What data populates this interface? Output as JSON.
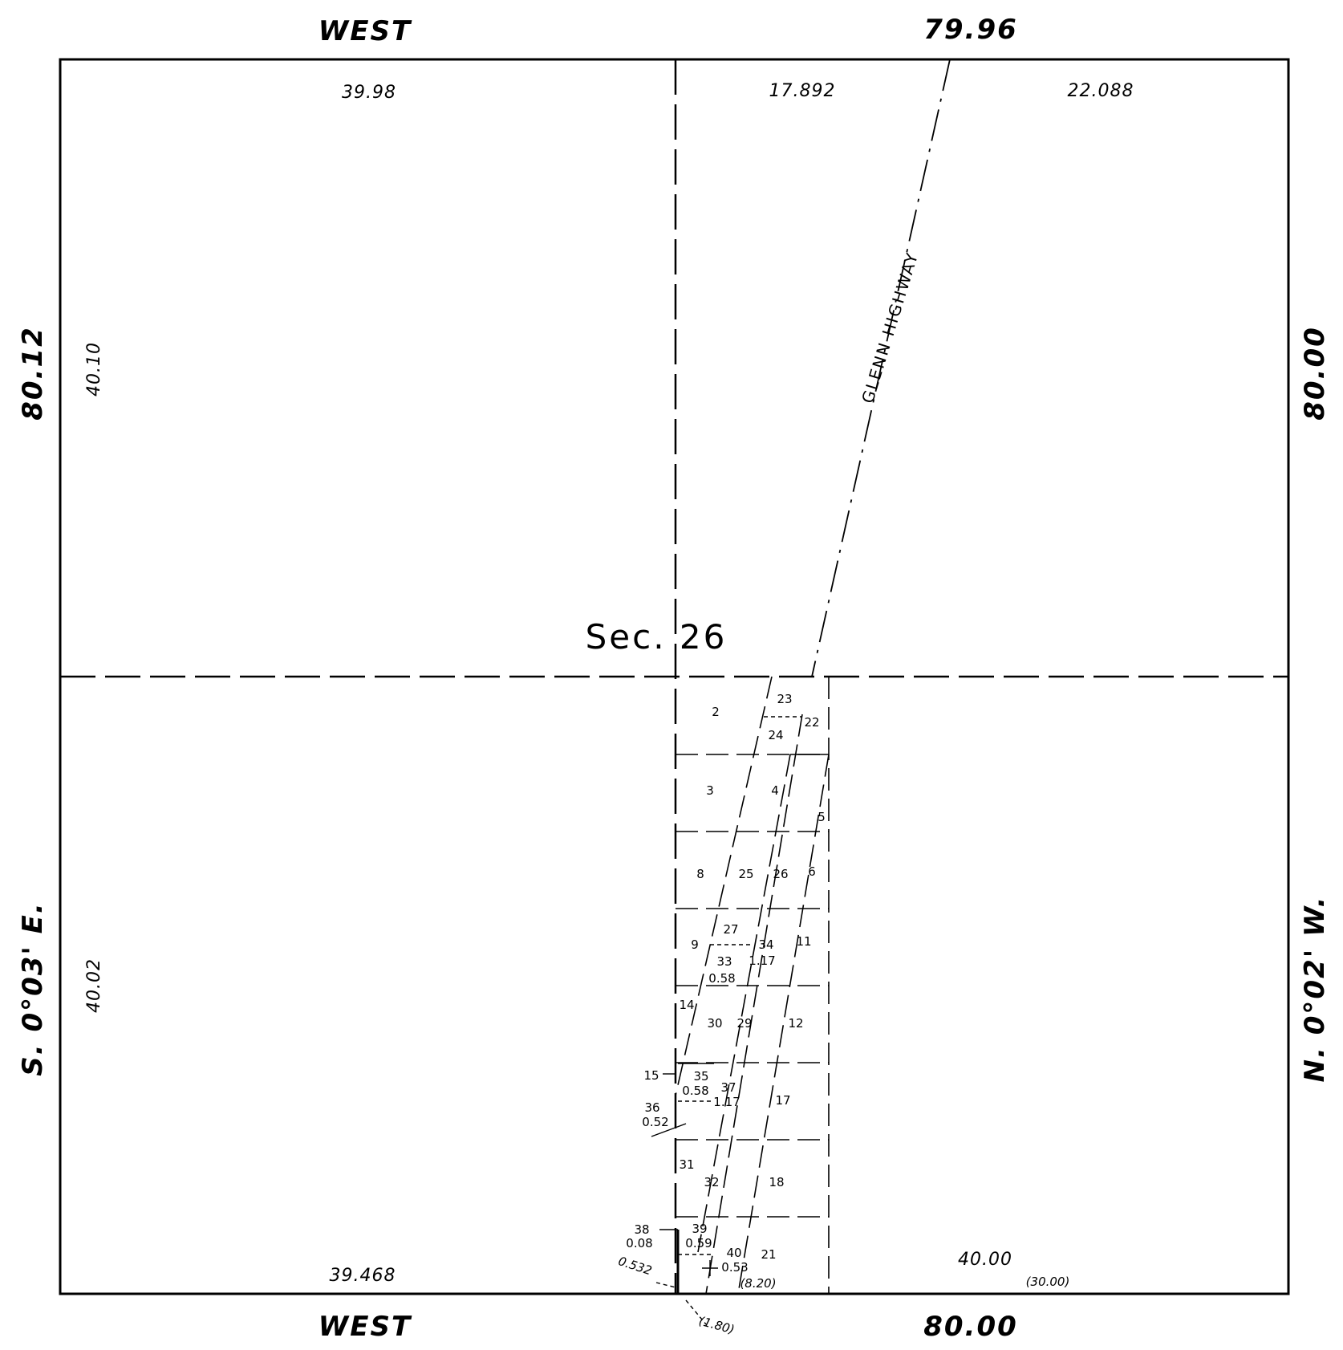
{
  "boundary": {
    "north_label": "WEST",
    "north_distance": "79.96",
    "south_label": "WEST",
    "south_distance": "80.00",
    "west_distance": "80.12",
    "west_bearing": "S. 0°03' E.",
    "east_distance": "80.00",
    "east_bearing": "N. 0°02' W."
  },
  "section": {
    "label": "Sec. 26"
  },
  "road": {
    "name": "GLENN HIGHWAY"
  },
  "dimensions": {
    "nw_top": "39.98",
    "ne_top_left": "17.892",
    "ne_top_right": "22.088",
    "nw_left": "40.10",
    "sw_left": "40.02",
    "sw_bottom": "39.468",
    "se_bottom": "40.00",
    "se_bottom_paren": "(30.00)",
    "lot_bottom_paren": "(8.20)",
    "lot_tail_paren": "(1.80)",
    "lot_tail_532": "0.532"
  },
  "lots": [
    {
      "id": "2",
      "text": "2"
    },
    {
      "id": "23",
      "text": "23"
    },
    {
      "id": "22",
      "text": "22"
    },
    {
      "id": "24",
      "text": "24"
    },
    {
      "id": "3",
      "text": "3"
    },
    {
      "id": "4",
      "text": "4"
    },
    {
      "id": "5",
      "text": "5"
    },
    {
      "id": "8",
      "text": "8"
    },
    {
      "id": "25",
      "text": "25"
    },
    {
      "id": "26",
      "text": "26"
    },
    {
      "id": "6",
      "text": "6"
    },
    {
      "id": "27",
      "text": "27"
    },
    {
      "id": "9",
      "text": "9"
    },
    {
      "id": "34",
      "text": "34"
    },
    {
      "id": "11",
      "text": "11"
    },
    {
      "id": "33",
      "text": "33"
    },
    {
      "id": "34a",
      "text": "1.17"
    },
    {
      "id": "33a",
      "text": "0.58"
    },
    {
      "id": "14",
      "text": "14"
    },
    {
      "id": "30",
      "text": "30"
    },
    {
      "id": "29",
      "text": "29"
    },
    {
      "id": "12",
      "text": "12"
    },
    {
      "id": "15",
      "text": "15"
    },
    {
      "id": "35",
      "text": "35"
    },
    {
      "id": "35a",
      "text": "0.58"
    },
    {
      "id": "37",
      "text": "37"
    },
    {
      "id": "37a",
      "text": "1.17"
    },
    {
      "id": "17",
      "text": "17"
    },
    {
      "id": "36",
      "text": "36"
    },
    {
      "id": "36a",
      "text": "0.52"
    },
    {
      "id": "31",
      "text": "31"
    },
    {
      "id": "32",
      "text": "32"
    },
    {
      "id": "18",
      "text": "18"
    },
    {
      "id": "38",
      "text": "38"
    },
    {
      "id": "38a",
      "text": "0.08"
    },
    {
      "id": "39",
      "text": "39"
    },
    {
      "id": "39a",
      "text": "0.59"
    },
    {
      "id": "40",
      "text": "40"
    },
    {
      "id": "40a",
      "text": "0.53"
    },
    {
      "id": "21",
      "text": "21"
    }
  ]
}
